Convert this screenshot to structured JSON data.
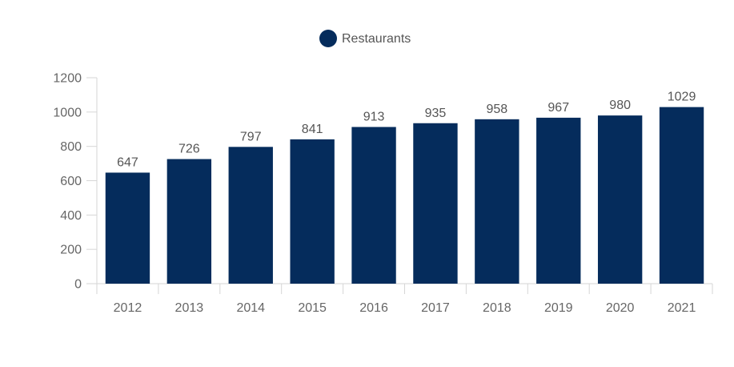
{
  "chart_data": {
    "type": "bar",
    "categories": [
      "2012",
      "2013",
      "2014",
      "2015",
      "2016",
      "2017",
      "2018",
      "2019",
      "2020",
      "2021"
    ],
    "series": [
      {
        "name": "Restaurants",
        "values": [
          647,
          726,
          797,
          841,
          913,
          935,
          958,
          967,
          980,
          1029
        ],
        "color": "#052c5c"
      }
    ],
    "ylim": [
      0,
      1200
    ],
    "yticks": [
      0,
      200,
      400,
      600,
      800,
      1000,
      1200
    ],
    "legend_position": "top-center",
    "grid": false,
    "data_labels": true
  }
}
